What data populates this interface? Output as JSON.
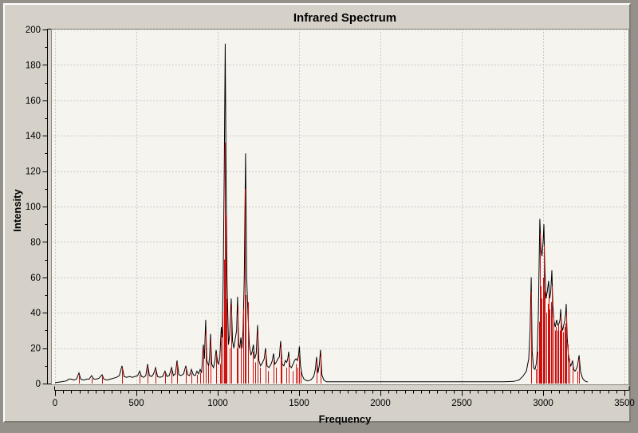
{
  "title": "Infrared Spectrum",
  "x_axis": {
    "label": "Frequency",
    "min": 0,
    "max": 3500,
    "major_tick_step": 500,
    "minor_tick_step": 50,
    "tick_labels": [
      "0",
      "500",
      "1000",
      "1500",
      "2000",
      "2500",
      "3000",
      "3500"
    ]
  },
  "y_axis": {
    "label": "Intensity",
    "min": 0,
    "max": 200,
    "major_tick_step": 20,
    "minor_tick_step": 10,
    "tick_labels": [
      "0",
      "20",
      "40",
      "60",
      "80",
      "100",
      "120",
      "140",
      "160",
      "180",
      "200"
    ]
  },
  "colors": {
    "outer_background": "#94918a",
    "panel_face": "#d5d1c9",
    "plot_background": "#f5f4ef",
    "grid": "#c9c9c9",
    "plot_border": "#8a887f",
    "axis": "#000000",
    "envelope_line": "#000000",
    "stick_line": "#cc1111",
    "text": "#000000"
  },
  "chart_data": {
    "type": "line",
    "title": "Infrared Spectrum",
    "xlabel": "Frequency",
    "ylabel": "Intensity",
    "xlim": [
      0,
      3500
    ],
    "ylim": [
      0,
      200
    ],
    "grid": true,
    "legend": false,
    "series": [
      {
        "name": "broadened-spectrum-envelope",
        "type": "line",
        "color": "#000000",
        "points": [
          [
            0,
            0.5
          ],
          [
            40,
            1
          ],
          [
            70,
            1.5
          ],
          [
            85,
            2.5
          ],
          [
            100,
            2.5
          ],
          [
            115,
            2
          ],
          [
            132,
            2.5
          ],
          [
            147,
            6
          ],
          [
            158,
            2.5
          ],
          [
            175,
            2
          ],
          [
            195,
            2.5
          ],
          [
            210,
            2.5
          ],
          [
            225,
            4.5
          ],
          [
            238,
            2.5
          ],
          [
            255,
            2.5
          ],
          [
            270,
            3
          ],
          [
            289,
            5
          ],
          [
            300,
            2.5
          ],
          [
            320,
            2
          ],
          [
            340,
            2.5
          ],
          [
            360,
            3
          ],
          [
            378,
            3.5
          ],
          [
            395,
            4.5
          ],
          [
            412,
            10
          ],
          [
            424,
            4
          ],
          [
            440,
            3.5
          ],
          [
            458,
            4
          ],
          [
            475,
            3.5
          ],
          [
            492,
            4
          ],
          [
            508,
            4.5
          ],
          [
            520,
            7
          ],
          [
            532,
            4
          ],
          [
            545,
            3.5
          ],
          [
            558,
            4.5
          ],
          [
            569,
            11
          ],
          [
            580,
            4.5
          ],
          [
            594,
            4
          ],
          [
            606,
            5.5
          ],
          [
            618,
            9
          ],
          [
            630,
            4
          ],
          [
            645,
            3.5
          ],
          [
            662,
            4
          ],
          [
            676,
            7
          ],
          [
            688,
            4
          ],
          [
            702,
            4.5
          ],
          [
            716,
            9
          ],
          [
            728,
            4.5
          ],
          [
            740,
            5.5
          ],
          [
            750,
            13
          ],
          [
            761,
            5
          ],
          [
            775,
            4.5
          ],
          [
            790,
            5.5
          ],
          [
            804,
            10
          ],
          [
            815,
            5
          ],
          [
            827,
            4.5
          ],
          [
            838,
            8
          ],
          [
            850,
            5
          ],
          [
            862,
            4.5
          ],
          [
            872,
            7
          ],
          [
            882,
            5.5
          ],
          [
            892,
            8
          ],
          [
            901,
            6
          ],
          [
            912,
            22
          ],
          [
            918,
            14
          ],
          [
            926,
            36
          ],
          [
            933,
            13
          ],
          [
            944,
            10
          ],
          [
            950,
            15
          ],
          [
            956,
            28
          ],
          [
            963,
            11
          ],
          [
            974,
            9
          ],
          [
            983,
            13
          ],
          [
            990,
            19
          ],
          [
            999,
            12
          ],
          [
            1006,
            11
          ],
          [
            1013,
            15
          ],
          [
            1022,
            32
          ],
          [
            1028,
            26
          ],
          [
            1034,
            60
          ],
          [
            1040,
            120
          ],
          [
            1046,
            192
          ],
          [
            1052,
            110
          ],
          [
            1057,
            60
          ],
          [
            1066,
            22
          ],
          [
            1074,
            28
          ],
          [
            1083,
            48
          ],
          [
            1091,
            24
          ],
          [
            1099,
            20
          ],
          [
            1109,
            26
          ],
          [
            1116,
            30
          ],
          [
            1122,
            49
          ],
          [
            1129,
            22
          ],
          [
            1136,
            20
          ],
          [
            1142,
            26
          ],
          [
            1149,
            20
          ],
          [
            1156,
            30
          ],
          [
            1163,
            60
          ],
          [
            1171,
            130
          ],
          [
            1178,
            60
          ],
          [
            1186,
            40
          ],
          [
            1194,
            22
          ],
          [
            1204,
            16
          ],
          [
            1212,
            18
          ],
          [
            1219,
            22
          ],
          [
            1227,
            14
          ],
          [
            1237,
            17
          ],
          [
            1245,
            33
          ],
          [
            1253,
            13
          ],
          [
            1263,
            10
          ],
          [
            1276,
            12
          ],
          [
            1286,
            14
          ],
          [
            1294,
            20
          ],
          [
            1303,
            10
          ],
          [
            1315,
            9
          ],
          [
            1328,
            11
          ],
          [
            1336,
            13
          ],
          [
            1343,
            17
          ],
          [
            1351,
            11
          ],
          [
            1360,
            12
          ],
          [
            1370,
            14
          ],
          [
            1379,
            15
          ],
          [
            1387,
            24
          ],
          [
            1396,
            11
          ],
          [
            1407,
            10
          ],
          [
            1415,
            13
          ],
          [
            1424,
            12
          ],
          [
            1431,
            14
          ],
          [
            1436,
            18
          ],
          [
            1443,
            10
          ],
          [
            1453,
            9
          ],
          [
            1463,
            11
          ],
          [
            1472,
            13
          ],
          [
            1481,
            14
          ],
          [
            1490,
            13
          ],
          [
            1497,
            16
          ],
          [
            1502,
            21
          ],
          [
            1509,
            10
          ],
          [
            1518,
            5
          ],
          [
            1530,
            2.5
          ],
          [
            1550,
            1.5
          ],
          [
            1572,
            2
          ],
          [
            1590,
            4
          ],
          [
            1600,
            8
          ],
          [
            1608,
            15
          ],
          [
            1616,
            6
          ],
          [
            1624,
            10
          ],
          [
            1632,
            19
          ],
          [
            1640,
            5
          ],
          [
            1652,
            2
          ],
          [
            1668,
            1
          ],
          [
            1700,
            1
          ],
          [
            1800,
            1
          ],
          [
            2000,
            1
          ],
          [
            2200,
            1
          ],
          [
            2400,
            1
          ],
          [
            2600,
            1
          ],
          [
            2750,
            1
          ],
          [
            2820,
            1.2
          ],
          [
            2852,
            2
          ],
          [
            2875,
            4
          ],
          [
            2897,
            7
          ],
          [
            2912,
            14
          ],
          [
            2920,
            30
          ],
          [
            2927,
            60
          ],
          [
            2933,
            18
          ],
          [
            2941,
            9
          ],
          [
            2950,
            8
          ],
          [
            2958,
            11
          ],
          [
            2964,
            18
          ],
          [
            2971,
            40
          ],
          [
            2980,
            93
          ],
          [
            2987,
            76
          ],
          [
            2993,
            72
          ],
          [
            3000,
            80
          ],
          [
            3005,
            90
          ],
          [
            3011,
            64
          ],
          [
            3018,
            48
          ],
          [
            3026,
            52
          ],
          [
            3034,
            58
          ],
          [
            3040,
            48
          ],
          [
            3047,
            52
          ],
          [
            3054,
            64
          ],
          [
            3060,
            44
          ],
          [
            3067,
            35
          ],
          [
            3075,
            32
          ],
          [
            3083,
            36
          ],
          [
            3090,
            33
          ],
          [
            3098,
            34
          ],
          [
            3104,
            36
          ],
          [
            3108,
            42
          ],
          [
            3113,
            33
          ],
          [
            3120,
            30
          ],
          [
            3127,
            33
          ],
          [
            3134,
            36
          ],
          [
            3139,
            40
          ],
          [
            3142,
            45
          ],
          [
            3148,
            26
          ],
          [
            3155,
            17
          ],
          [
            3163,
            12
          ],
          [
            3170,
            10
          ],
          [
            3175,
            11
          ],
          [
            3181,
            13
          ],
          [
            3188,
            8
          ],
          [
            3196,
            7
          ],
          [
            3204,
            8
          ],
          [
            3212,
            10
          ],
          [
            3221,
            16
          ],
          [
            3230,
            7
          ],
          [
            3242,
            3
          ],
          [
            3256,
            1.5
          ],
          [
            3275,
            0.8
          ]
        ]
      },
      {
        "name": "vibrational-mode-sticks",
        "type": "stick",
        "color": "#cc1111",
        "points": [
          [
            147,
            5
          ],
          [
            225,
            3
          ],
          [
            289,
            4
          ],
          [
            412,
            9
          ],
          [
            520,
            5
          ],
          [
            569,
            10
          ],
          [
            618,
            8
          ],
          [
            676,
            6
          ],
          [
            716,
            8
          ],
          [
            750,
            12
          ],
          [
            804,
            9
          ],
          [
            838,
            6
          ],
          [
            872,
            5
          ],
          [
            892,
            6
          ],
          [
            912,
            20
          ],
          [
            926,
            30
          ],
          [
            940,
            10
          ],
          [
            956,
            25
          ],
          [
            990,
            17
          ],
          [
            1013,
            11
          ],
          [
            1022,
            28
          ],
          [
            1030,
            40
          ],
          [
            1038,
            70
          ],
          [
            1044,
            136
          ],
          [
            1050,
            95
          ],
          [
            1056,
            48
          ],
          [
            1074,
            20
          ],
          [
            1083,
            45
          ],
          [
            1116,
            20
          ],
          [
            1122,
            44
          ],
          [
            1142,
            22
          ],
          [
            1157,
            42
          ],
          [
            1168,
            110
          ],
          [
            1174,
            50
          ],
          [
            1186,
            46
          ],
          [
            1216,
            18
          ],
          [
            1232,
            12
          ],
          [
            1245,
            30
          ],
          [
            1258,
            9
          ],
          [
            1294,
            18
          ],
          [
            1310,
            7
          ],
          [
            1343,
            13
          ],
          [
            1360,
            9
          ],
          [
            1387,
            22
          ],
          [
            1394,
            14
          ],
          [
            1420,
            9
          ],
          [
            1436,
            15
          ],
          [
            1460,
            7
          ],
          [
            1478,
            11
          ],
          [
            1490,
            9
          ],
          [
            1502,
            16
          ],
          [
            1510,
            7
          ],
          [
            1608,
            13
          ],
          [
            1632,
            17
          ],
          [
            2927,
            52
          ],
          [
            2958,
            8
          ],
          [
            2968,
            18
          ],
          [
            2976,
            35
          ],
          [
            2980,
            85
          ],
          [
            2986,
            55
          ],
          [
            2992,
            48
          ],
          [
            3000,
            60
          ],
          [
            3005,
            78
          ],
          [
            3012,
            52
          ],
          [
            3020,
            40
          ],
          [
            3028,
            45
          ],
          [
            3034,
            50
          ],
          [
            3040,
            42
          ],
          [
            3047,
            46
          ],
          [
            3054,
            55
          ],
          [
            3062,
            38
          ],
          [
            3072,
            30
          ],
          [
            3080,
            32
          ],
          [
            3088,
            30
          ],
          [
            3095,
            33
          ],
          [
            3102,
            30
          ],
          [
            3108,
            38
          ],
          [
            3115,
            31
          ],
          [
            3122,
            29
          ],
          [
            3130,
            32
          ],
          [
            3137,
            34
          ],
          [
            3142,
            40
          ],
          [
            3150,
            22
          ],
          [
            3160,
            14
          ],
          [
            3181,
            10
          ],
          [
            3212,
            7
          ],
          [
            3221,
            14
          ]
        ]
      }
    ]
  }
}
